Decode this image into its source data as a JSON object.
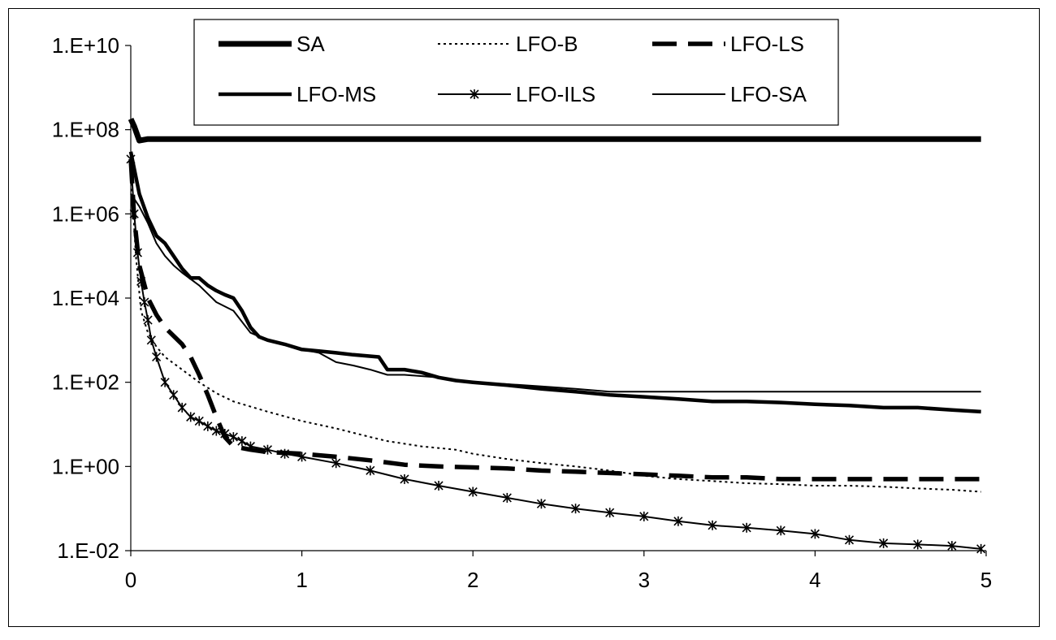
{
  "chart_data": {
    "type": "line",
    "title": "",
    "xlabel": "",
    "ylabel": "",
    "y_scale": "log",
    "xlim": [
      0,
      5
    ],
    "ylim": [
      0.01,
      10000000000
    ],
    "x_ticks": [
      0,
      1,
      2,
      3,
      4,
      5
    ],
    "x_tick_labels": [
      "0",
      "1",
      "2",
      "3",
      "4",
      "5"
    ],
    "y_ticks": [
      0.01,
      1,
      100,
      10000,
      1000000,
      100000000,
      10000000000
    ],
    "y_tick_labels": [
      "1.E-02",
      "1.E+00",
      "1.E+02",
      "1.E+04",
      "1.E+06",
      "1.E+08",
      "1.E+10"
    ],
    "grid": false,
    "legend": {
      "placement": "top",
      "columns": 3,
      "order": [
        "SA",
        "LFO-B",
        "LFO-LS",
        "LFO-MS",
        "LFO-ILS",
        "LFO-SA"
      ]
    },
    "series": [
      {
        "name": "SA",
        "style": "very-thick-solid",
        "color": "#000000",
        "x": [
          0,
          0.02,
          0.05,
          0.1,
          1,
          2,
          3,
          4,
          4.97
        ],
        "y": [
          180000000,
          120000000,
          55000000,
          60000000,
          60000000,
          60000000,
          60000000,
          60000000,
          60000000
        ]
      },
      {
        "name": "LFO-B",
        "style": "dotted",
        "color": "#000000",
        "x": [
          0,
          0.03,
          0.06,
          0.1,
          0.15,
          0.2,
          0.3,
          0.4,
          0.5,
          0.6,
          0.8,
          1.0,
          1.2,
          1.4,
          1.5,
          1.7,
          1.9,
          2.0,
          2.2,
          2.4,
          2.6,
          2.8,
          3.0,
          3.2,
          3.4,
          3.6,
          3.8,
          4.0,
          4.2,
          4.4,
          4.6,
          4.8,
          4.97
        ],
        "y": [
          10000000,
          100000,
          5000,
          1500,
          700,
          400,
          200,
          100,
          55,
          35,
          20,
          12,
          8,
          5,
          4,
          3,
          2.5,
          2,
          1.5,
          1.2,
          1.0,
          0.8,
          0.6,
          0.5,
          0.45,
          0.4,
          0.38,
          0.35,
          0.35,
          0.33,
          0.3,
          0.28,
          0.25
        ]
      },
      {
        "name": "LFO-LS",
        "style": "long-dash",
        "color": "#000000",
        "x": [
          0,
          0.02,
          0.05,
          0.1,
          0.15,
          0.2,
          0.3,
          0.35,
          0.4,
          0.45,
          0.5,
          0.55,
          0.6,
          0.7,
          0.8,
          1.0,
          1.2,
          1.4,
          1.6,
          1.8,
          2.0,
          2.2,
          2.4,
          2.6,
          2.8,
          3.0,
          3.2,
          3.4,
          3.6,
          3.8,
          4.0,
          4.2,
          4.4,
          4.6,
          4.8,
          4.97
        ],
        "y": [
          20000000,
          800000,
          60000,
          10000,
          4000,
          2000,
          800,
          400,
          150,
          50,
          15,
          5,
          3,
          2.5,
          2.2,
          2,
          1.7,
          1.4,
          1.1,
          1.0,
          0.95,
          0.9,
          0.8,
          0.75,
          0.7,
          0.65,
          0.6,
          0.55,
          0.55,
          0.5,
          0.5,
          0.5,
          0.5,
          0.5,
          0.5,
          0.5
        ]
      },
      {
        "name": "LFO-MS",
        "style": "thick-solid",
        "color": "#000000",
        "x": [
          0,
          0.05,
          0.1,
          0.15,
          0.2,
          0.25,
          0.3,
          0.35,
          0.4,
          0.45,
          0.5,
          0.55,
          0.6,
          0.65,
          0.7,
          0.75,
          0.8,
          0.9,
          1.0,
          1.1,
          1.2,
          1.3,
          1.45,
          1.5,
          1.6,
          1.7,
          1.8,
          1.9,
          2.0,
          2.2,
          2.4,
          2.6,
          2.8,
          3.0,
          3.2,
          3.4,
          3.6,
          3.8,
          4.0,
          4.2,
          4.4,
          4.6,
          4.8,
          4.97
        ],
        "y": [
          30000000,
          3000000,
          800000,
          300000,
          200000,
          100000,
          50000,
          30000,
          30000,
          20000,
          15000,
          12000,
          10000,
          5000,
          2000,
          1200,
          1000,
          800,
          600,
          550,
          500,
          450,
          400,
          200,
          200,
          170,
          130,
          110,
          100,
          85,
          70,
          60,
          50,
          45,
          40,
          35,
          35,
          33,
          30,
          28,
          25,
          25,
          22,
          20
        ]
      },
      {
        "name": "LFO-ILS",
        "style": "solid-with-x-markers",
        "color": "#000000",
        "x": [
          0,
          0.02,
          0.04,
          0.06,
          0.08,
          0.1,
          0.12,
          0.15,
          0.2,
          0.25,
          0.3,
          0.35,
          0.4,
          0.45,
          0.5,
          0.55,
          0.6,
          0.65,
          0.7,
          0.8,
          0.9,
          1.0,
          1.2,
          1.4,
          1.6,
          1.8,
          2.0,
          2.2,
          2.4,
          2.6,
          2.8,
          3.0,
          3.2,
          3.4,
          3.6,
          3.8,
          4.0,
          4.2,
          4.4,
          4.6,
          4.8,
          4.97
        ],
        "y": [
          20000000,
          1000000,
          120000,
          25000,
          8000,
          3000,
          1000,
          400,
          100,
          50,
          25,
          15,
          12,
          9,
          7,
          6,
          5,
          4,
          3,
          2.5,
          2.0,
          1.7,
          1.2,
          0.8,
          0.5,
          0.35,
          0.25,
          0.18,
          0.13,
          0.1,
          0.08,
          0.065,
          0.05,
          0.04,
          0.035,
          0.03,
          0.025,
          0.018,
          0.015,
          0.014,
          0.013,
          0.011
        ]
      },
      {
        "name": "LFO-SA",
        "style": "thin-solid",
        "color": "#000000",
        "x": [
          0,
          0.05,
          0.1,
          0.15,
          0.2,
          0.25,
          0.3,
          0.4,
          0.5,
          0.6,
          0.7,
          0.8,
          0.9,
          1.0,
          1.1,
          1.2,
          1.3,
          1.4,
          1.5,
          1.6,
          1.8,
          2.0,
          2.2,
          2.4,
          2.6,
          2.8,
          3.0,
          3.2,
          3.4,
          3.6,
          3.8,
          4.0,
          4.2,
          4.4,
          4.6,
          4.8,
          4.97
        ],
        "y": [
          3000000,
          1500000,
          600000,
          200000,
          100000,
          60000,
          40000,
          20000,
          8000,
          5000,
          1500,
          1000,
          800,
          600,
          500,
          300,
          250,
          200,
          150,
          150,
          130,
          100,
          90,
          80,
          70,
          60,
          60,
          60,
          60,
          60,
          60,
          60,
          60,
          60,
          60,
          60,
          60
        ]
      }
    ]
  }
}
